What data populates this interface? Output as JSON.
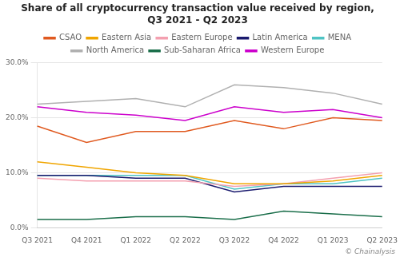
{
  "chart_data": {
    "type": "line",
    "title": "Share of all cryptocurrency transaction value received by region,\nQ3 2021 - Q2 2023",
    "categories": [
      "Q3 2021",
      "Q4 2021",
      "Q1 2022",
      "Q2 2022",
      "Q3 2022",
      "Q4 2022",
      "Q1 2023",
      "Q2 2023"
    ],
    "series": [
      {
        "name": "CSAO",
        "color": "#e05a20",
        "values": [
          18.5,
          15.5,
          17.5,
          17.5,
          19.5,
          18.0,
          20.0,
          19.5
        ]
      },
      {
        "name": "Eastern Asia",
        "color": "#f0a500",
        "values": [
          12.0,
          11.0,
          10.0,
          9.5,
          8.0,
          8.0,
          8.5,
          9.5
        ]
      },
      {
        "name": "Eastern Europe",
        "color": "#f4a0b0",
        "values": [
          9.0,
          8.5,
          8.5,
          8.5,
          7.5,
          8.0,
          9.0,
          10.0
        ]
      },
      {
        "name": "Latin America",
        "color": "#1a1a6e",
        "values": [
          9.5,
          9.5,
          9.0,
          9.0,
          6.5,
          7.5,
          7.5,
          7.5
        ]
      },
      {
        "name": "MENA",
        "color": "#4fc4c4",
        "values": [
          9.5,
          9.5,
          9.5,
          9.5,
          7.0,
          8.0,
          8.0,
          9.0
        ]
      },
      {
        "name": "North America",
        "color": "#b0b0b0",
        "values": [
          22.5,
          23.0,
          23.5,
          22.0,
          26.0,
          25.5,
          24.5,
          22.5
        ]
      },
      {
        "name": "Sub-Saharan Africa",
        "color": "#1a6e4a",
        "values": [
          1.5,
          1.5,
          2.0,
          2.0,
          1.5,
          3.0,
          2.5,
          2.0
        ]
      },
      {
        "name": "Western Europe",
        "color": "#cc00cc",
        "values": [
          22.0,
          21.0,
          20.5,
          19.5,
          22.0,
          21.0,
          21.5,
          20.0
        ]
      }
    ],
    "ylim": [
      0,
      30
    ],
    "yticks": [
      {
        "value": 0,
        "label": "0.0%"
      },
      {
        "value": 10,
        "label": "10.0%"
      },
      {
        "value": 20,
        "label": "20.0%"
      },
      {
        "value": 30,
        "label": "30.0%"
      }
    ],
    "grid": true,
    "legend": "top",
    "annotations": [
      "© Chainalysis"
    ]
  }
}
